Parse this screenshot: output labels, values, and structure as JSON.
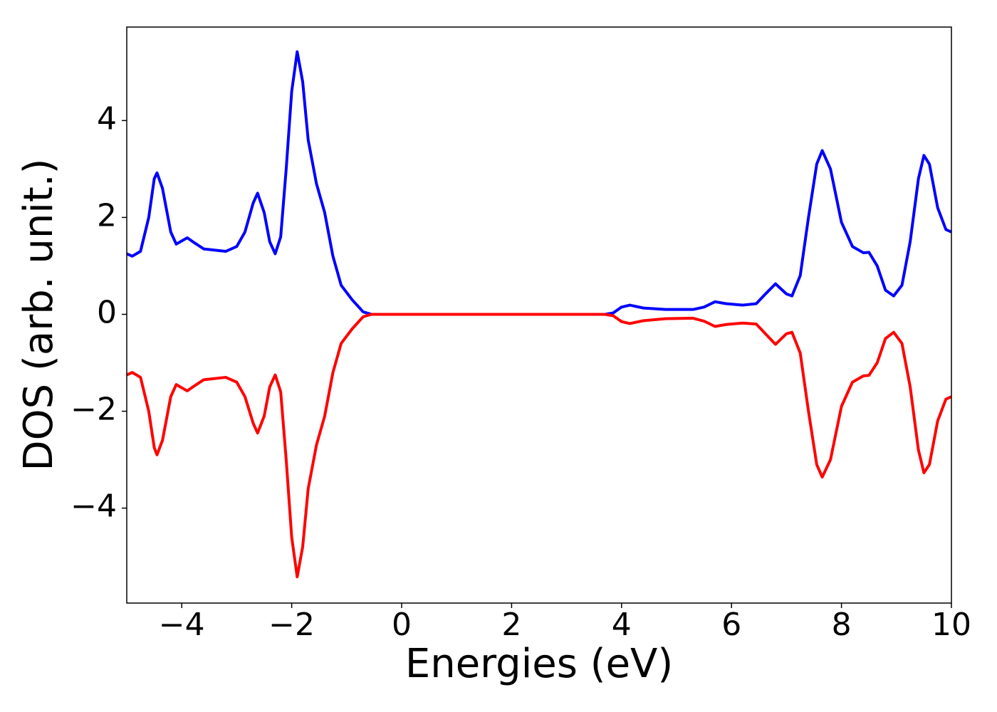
{
  "chart_data": {
    "type": "line",
    "xlabel": "Energies (eV)",
    "ylabel": "DOS (arb. unit.)",
    "x": [
      -5,
      -4.9,
      -4.75,
      -4.6,
      -4.5,
      -4.45,
      -4.35,
      -4.2,
      -4.1,
      -3.9,
      -3.8,
      -3.6,
      -3.2,
      -3.0,
      -2.85,
      -2.7,
      -2.62,
      -2.5,
      -2.4,
      -2.3,
      -2.2,
      -2.1,
      -2.0,
      -1.9,
      -1.8,
      -1.7,
      -1.55,
      -1.4,
      -1.25,
      -1.1,
      -0.9,
      -0.7,
      -0.55,
      0,
      2,
      3.7,
      3.85,
      4.0,
      4.15,
      4.4,
      4.8,
      5.3,
      5.5,
      5.7,
      5.9,
      6.2,
      6.45,
      6.6,
      6.8,
      7.0,
      7.1,
      7.25,
      7.4,
      7.55,
      7.65,
      7.8,
      8.0,
      8.2,
      8.4,
      8.5,
      8.65,
      8.8,
      8.95,
      9.1,
      9.25,
      9.4,
      9.5,
      9.6,
      9.75,
      9.9,
      10
    ],
    "series": [
      {
        "color": "#0000ff",
        "values": [
          1.25,
          1.2,
          1.3,
          2.0,
          2.8,
          2.92,
          2.6,
          1.7,
          1.45,
          1.58,
          1.5,
          1.35,
          1.3,
          1.4,
          1.7,
          2.3,
          2.5,
          2.1,
          1.5,
          1.25,
          1.6,
          3.0,
          4.6,
          5.42,
          4.8,
          3.6,
          2.7,
          2.1,
          1.2,
          0.6,
          0.3,
          0.05,
          0,
          0,
          0,
          0,
          0.03,
          0.15,
          0.19,
          0.13,
          0.1,
          0.1,
          0.15,
          0.26,
          0.22,
          0.19,
          0.22,
          0.4,
          0.63,
          0.42,
          0.38,
          0.8,
          2.0,
          3.1,
          3.38,
          3.0,
          1.9,
          1.4,
          1.27,
          1.28,
          1.0,
          0.5,
          0.38,
          0.6,
          1.5,
          2.8,
          3.28,
          3.1,
          2.2,
          1.75,
          1.7
        ]
      },
      {
        "color": "#ff0000",
        "values": [
          -1.25,
          -1.2,
          -1.3,
          -2.0,
          -2.75,
          -2.9,
          -2.6,
          -1.7,
          -1.45,
          -1.58,
          -1.5,
          -1.35,
          -1.3,
          -1.4,
          -1.7,
          -2.25,
          -2.45,
          -2.1,
          -1.5,
          -1.25,
          -1.6,
          -3.0,
          -4.6,
          -5.42,
          -4.8,
          -3.6,
          -2.7,
          -2.1,
          -1.2,
          -0.6,
          -0.3,
          -0.05,
          0,
          0,
          0,
          0,
          -0.03,
          -0.15,
          -0.19,
          -0.13,
          -0.09,
          -0.08,
          -0.14,
          -0.25,
          -0.21,
          -0.18,
          -0.2,
          -0.38,
          -0.62,
          -0.4,
          -0.37,
          -0.8,
          -2.0,
          -3.1,
          -3.36,
          -3.0,
          -1.9,
          -1.4,
          -1.27,
          -1.26,
          -1.0,
          -0.5,
          -0.37,
          -0.6,
          -1.5,
          -2.8,
          -3.27,
          -3.1,
          -2.2,
          -1.75,
          -1.7
        ]
      }
    ],
    "xlim": [
      -5,
      10
    ],
    "xticks": [
      {
        "value": -4,
        "label": "−4"
      },
      {
        "value": -2,
        "label": "−2"
      },
      0,
      2,
      4,
      6,
      8,
      10
    ],
    "ylim": [
      -5.96,
      5.93
    ],
    "yticks": [
      {
        "value": -4,
        "label": "−4"
      },
      {
        "value": -2,
        "label": "−2"
      },
      0,
      2,
      4
    ]
  }
}
